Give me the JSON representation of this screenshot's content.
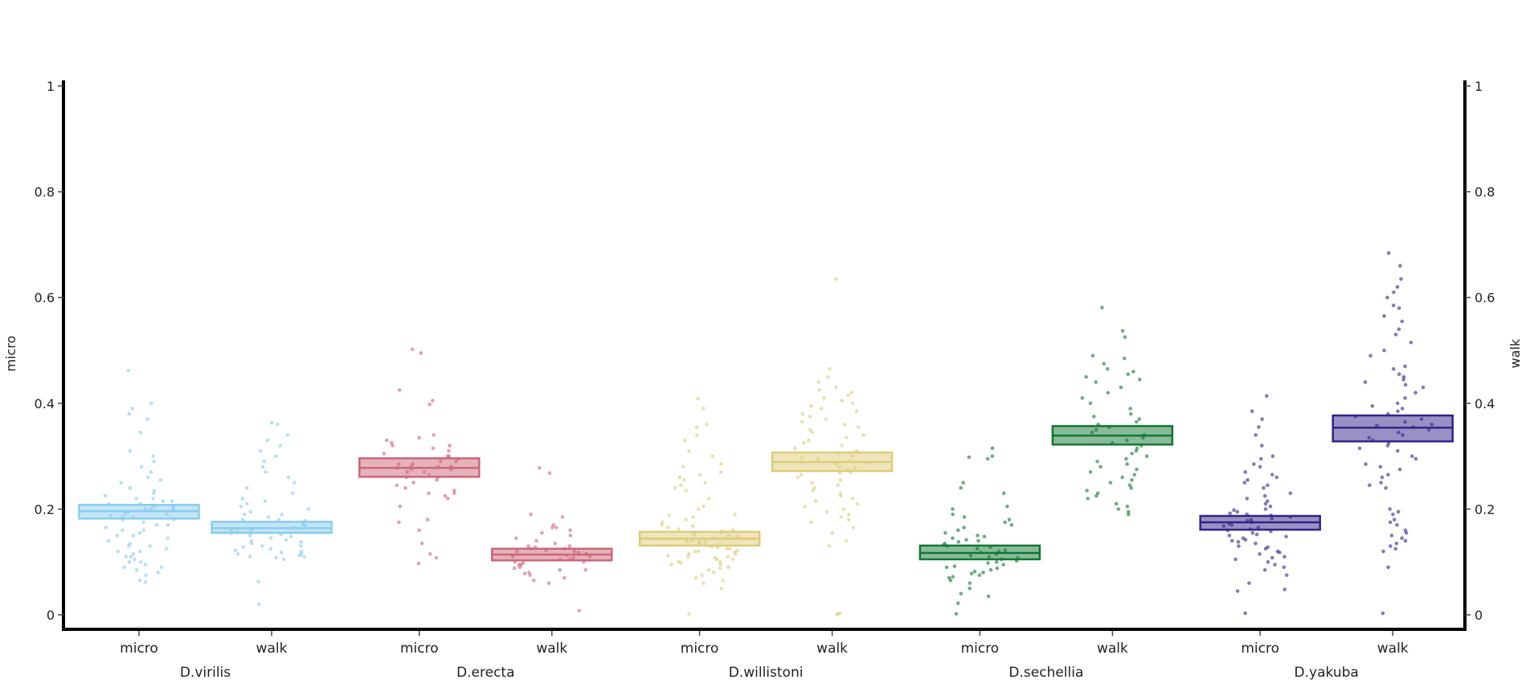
{
  "chart_data": {
    "type": "box",
    "title": "",
    "ylabel_left": "micro",
    "ylabel_right": "walk",
    "ylim": [
      0,
      1
    ],
    "yticks": [
      "0",
      "0.2",
      "0.4",
      "0.6",
      "0.8",
      "1"
    ],
    "ytick_values": [
      0,
      0.2,
      0.4,
      0.6,
      0.8,
      1
    ],
    "grid": false,
    "legend": "none",
    "groups": [
      {
        "name": "D.virilis",
        "color": "#88CCEE",
        "series": [
          {
            "name": "micro",
            "q1": 0.182,
            "median": 0.196,
            "q3": 0.208,
            "points": [
              0.462,
              0.4,
              0.39,
              0.38,
              0.37,
              0.345,
              0.31,
              0.3,
              0.29,
              0.28,
              0.27,
              0.26,
              0.255,
              0.25,
              0.24,
              0.235,
              0.23,
              0.225,
              0.22,
              0.22,
              0.215,
              0.215,
              0.21,
              0.21,
              0.205,
              0.205,
              0.2,
              0.2,
              0.2,
              0.198,
              0.195,
              0.195,
              0.19,
              0.19,
              0.188,
              0.185,
              0.185,
              0.18,
              0.18,
              0.175,
              0.17,
              0.17,
              0.165,
              0.16,
              0.16,
              0.155,
              0.15,
              0.15,
              0.145,
              0.14,
              0.135,
              0.13,
              0.13,
              0.125,
              0.12,
              0.12,
              0.115,
              0.11,
              0.11,
              0.105,
              0.1,
              0.1,
              0.095,
              0.09,
              0.09,
              0.085,
              0.08,
              0.075,
              0.062,
              0.065
            ]
          },
          {
            "name": "walk",
            "q1": 0.155,
            "median": 0.164,
            "q3": 0.176,
            "points": [
              0.363,
              0.36,
              0.34,
              0.33,
              0.32,
              0.31,
              0.3,
              0.29,
              0.28,
              0.27,
              0.26,
              0.25,
              0.24,
              0.23,
              0.22,
              0.215,
              0.21,
              0.205,
              0.2,
              0.195,
              0.19,
              0.19,
              0.185,
              0.18,
              0.18,
              0.178,
              0.175,
              0.172,
              0.17,
              0.168,
              0.165,
              0.163,
              0.16,
              0.16,
              0.158,
              0.155,
              0.152,
              0.15,
              0.148,
              0.145,
              0.142,
              0.14,
              0.138,
              0.135,
              0.13,
              0.13,
              0.128,
              0.125,
              0.122,
              0.12,
              0.118,
              0.115,
              0.115,
              0.112,
              0.11,
              0.11,
              0.108,
              0.105,
              0.063,
              0.02
            ]
          }
        ]
      },
      {
        "name": "D.erecta",
        "color": "#CC6677",
        "series": [
          {
            "name": "micro",
            "q1": 0.261,
            "median": 0.278,
            "q3": 0.296,
            "points": [
              0.502,
              0.495,
              0.425,
              0.405,
              0.398,
              0.34,
              0.335,
              0.33,
              0.325,
              0.32,
              0.32,
              0.315,
              0.31,
              0.305,
              0.3,
              0.3,
              0.295,
              0.29,
              0.29,
              0.285,
              0.285,
              0.28,
              0.28,
              0.28,
              0.278,
              0.275,
              0.275,
              0.27,
              0.27,
              0.265,
              0.26,
              0.26,
              0.255,
              0.25,
              0.245,
              0.24,
              0.235,
              0.23,
              0.23,
              0.225,
              0.22,
              0.205,
              0.18,
              0.175,
              0.16,
              0.135,
              0.115,
              0.108,
              0.097
            ]
          },
          {
            "name": "walk",
            "q1": 0.103,
            "median": 0.114,
            "q3": 0.125,
            "points": [
              0.278,
              0.268,
              0.19,
              0.185,
              0.17,
              0.165,
              0.165,
              0.16,
              0.155,
              0.15,
              0.145,
              0.14,
              0.135,
              0.13,
              0.13,
              0.128,
              0.125,
              0.125,
              0.122,
              0.12,
              0.12,
              0.118,
              0.115,
              0.115,
              0.112,
              0.11,
              0.11,
              0.108,
              0.105,
              0.105,
              0.1,
              0.1,
              0.098,
              0.095,
              0.095,
              0.09,
              0.088,
              0.085,
              0.085,
              0.08,
              0.078,
              0.075,
              0.07,
              0.065,
              0.06,
              0.008
            ]
          }
        ]
      },
      {
        "name": "D.willistoni",
        "color": "#DDCC77",
        "series": [
          {
            "name": "micro",
            "q1": 0.131,
            "median": 0.144,
            "q3": 0.157,
            "points": [
              0.409,
              0.39,
              0.36,
              0.355,
              0.34,
              0.33,
              0.31,
              0.3,
              0.285,
              0.28,
              0.27,
              0.265,
              0.26,
              0.255,
              0.25,
              0.245,
              0.24,
              0.235,
              0.22,
              0.205,
              0.2,
              0.19,
              0.188,
              0.185,
              0.18,
              0.175,
              0.17,
              0.168,
              0.165,
              0.162,
              0.16,
              0.158,
              0.155,
              0.152,
              0.15,
              0.148,
              0.145,
              0.145,
              0.142,
              0.14,
              0.14,
              0.138,
              0.135,
              0.135,
              0.132,
              0.13,
              0.13,
              0.128,
              0.125,
              0.125,
              0.122,
              0.12,
              0.12,
              0.118,
              0.115,
              0.115,
              0.112,
              0.11,
              0.11,
              0.108,
              0.105,
              0.105,
              0.1,
              0.1,
              0.098,
              0.095,
              0.095,
              0.09,
              0.088,
              0.085,
              0.08,
              0.075,
              0.07,
              0.065,
              0.06,
              0.05,
              0.002
            ]
          },
          {
            "name": "walk",
            "q1": 0.272,
            "median": 0.289,
            "q3": 0.307,
            "points": [
              0.635,
              0.465,
              0.45,
              0.44,
              0.43,
              0.425,
              0.42,
              0.415,
              0.41,
              0.405,
              0.4,
              0.395,
              0.39,
              0.385,
              0.38,
              0.375,
              0.37,
              0.365,
              0.36,
              0.355,
              0.35,
              0.345,
              0.34,
              0.335,
              0.33,
              0.325,
              0.32,
              0.315,
              0.31,
              0.305,
              0.3,
              0.298,
              0.295,
              0.29,
              0.288,
              0.285,
              0.28,
              0.278,
              0.275,
              0.27,
              0.268,
              0.265,
              0.26,
              0.255,
              0.25,
              0.245,
              0.24,
              0.235,
              0.23,
              0.225,
              0.22,
              0.215,
              0.21,
              0.205,
              0.2,
              0.195,
              0.19,
              0.185,
              0.18,
              0.175,
              0.165,
              0.155,
              0.14,
              0.13,
              0.003,
              0.002,
              0.001
            ]
          }
        ]
      },
      {
        "name": "D.sechellia",
        "color": "#117733",
        "series": [
          {
            "name": "micro",
            "q1": 0.105,
            "median": 0.117,
            "q3": 0.131,
            "points": [
              0.315,
              0.3,
              0.298,
              0.295,
              0.25,
              0.24,
              0.23,
              0.205,
              0.2,
              0.19,
              0.185,
              0.18,
              0.175,
              0.17,
              0.165,
              0.16,
              0.155,
              0.15,
              0.148,
              0.145,
              0.142,
              0.14,
              0.138,
              0.135,
              0.132,
              0.13,
              0.128,
              0.125,
              0.122,
              0.12,
              0.118,
              0.115,
              0.112,
              0.11,
              0.108,
              0.105,
              0.102,
              0.1,
              0.098,
              0.095,
              0.092,
              0.09,
              0.088,
              0.085,
              0.082,
              0.08,
              0.078,
              0.075,
              0.072,
              0.07,
              0.065,
              0.06,
              0.05,
              0.04,
              0.035,
              0.022,
              0.002
            ]
          },
          {
            "name": "walk",
            "q1": 0.322,
            "median": 0.339,
            "q3": 0.357,
            "points": [
              0.581,
              0.537,
              0.525,
              0.49,
              0.485,
              0.475,
              0.465,
              0.46,
              0.455,
              0.45,
              0.445,
              0.44,
              0.43,
              0.42,
              0.41,
              0.4,
              0.39,
              0.38,
              0.375,
              0.37,
              0.365,
              0.36,
              0.355,
              0.35,
              0.345,
              0.34,
              0.335,
              0.33,
              0.325,
              0.32,
              0.315,
              0.31,
              0.305,
              0.3,
              0.295,
              0.29,
              0.285,
              0.28,
              0.275,
              0.27,
              0.265,
              0.26,
              0.255,
              0.25,
              0.245,
              0.24,
              0.235,
              0.23,
              0.225,
              0.22,
              0.21,
              0.205,
              0.2,
              0.195,
              0.19
            ]
          }
        ]
      },
      {
        "name": "D.yakuba",
        "color": "#332288",
        "series": [
          {
            "name": "micro",
            "q1": 0.161,
            "median": 0.175,
            "q3": 0.187,
            "points": [
              0.414,
              0.385,
              0.37,
              0.355,
              0.34,
              0.32,
              0.3,
              0.295,
              0.285,
              0.28,
              0.27,
              0.265,
              0.26,
              0.255,
              0.25,
              0.245,
              0.24,
              0.23,
              0.225,
              0.22,
              0.215,
              0.21,
              0.205,
              0.2,
              0.198,
              0.195,
              0.192,
              0.19,
              0.188,
              0.185,
              0.182,
              0.18,
              0.178,
              0.175,
              0.172,
              0.17,
              0.168,
              0.165,
              0.162,
              0.16,
              0.158,
              0.155,
              0.152,
              0.15,
              0.148,
              0.145,
              0.142,
              0.14,
              0.138,
              0.135,
              0.13,
              0.128,
              0.125,
              0.12,
              0.118,
              0.115,
              0.11,
              0.108,
              0.105,
              0.1,
              0.095,
              0.09,
              0.085,
              0.075,
              0.06,
              0.048,
              0.045,
              0.003
            ]
          },
          {
            "name": "walk",
            "q1": 0.328,
            "median": 0.354,
            "q3": 0.377,
            "points": [
              0.684,
              0.66,
              0.635,
              0.62,
              0.61,
              0.6,
              0.585,
              0.58,
              0.565,
              0.555,
              0.54,
              0.53,
              0.515,
              0.5,
              0.49,
              0.47,
              0.465,
              0.455,
              0.45,
              0.445,
              0.44,
              0.435,
              0.43,
              0.42,
              0.41,
              0.4,
              0.395,
              0.39,
              0.385,
              0.38,
              0.375,
              0.37,
              0.365,
              0.36,
              0.358,
              0.355,
              0.35,
              0.345,
              0.34,
              0.335,
              0.33,
              0.325,
              0.32,
              0.315,
              0.31,
              0.3,
              0.295,
              0.285,
              0.28,
              0.275,
              0.265,
              0.26,
              0.25,
              0.245,
              0.24,
              0.2,
              0.195,
              0.19,
              0.18,
              0.175,
              0.17,
              0.16,
              0.155,
              0.15,
              0.145,
              0.14,
              0.135,
              0.13,
              0.125,
              0.12,
              0.09,
              0.003
            ]
          }
        ]
      }
    ]
  }
}
